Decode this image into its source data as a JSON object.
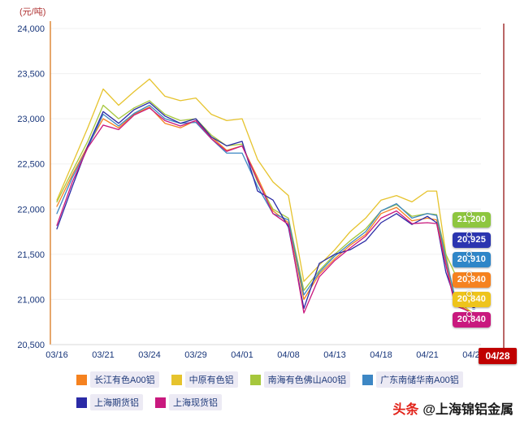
{
  "header": {
    "unit_label": "(元/吨)"
  },
  "current_date_badge": "04/28",
  "watermark": {
    "brand": "头条",
    "handle": "@上海锦铝金属"
  },
  "chart_data": {
    "type": "line",
    "title": "",
    "ylabel": "(元/吨)",
    "ylim": [
      20500,
      24000
    ],
    "y_tick_step": 500,
    "y_ticks": [
      "24,000",
      "23,500",
      "23,000",
      "22,500",
      "22,000",
      "21,500",
      "21,000",
      "20,500"
    ],
    "grid": true,
    "legend_position": "bottom",
    "dates": [
      "03/16",
      "03/17",
      "03/18",
      "03/21",
      "03/22",
      "03/23",
      "03/24",
      "03/25",
      "03/28",
      "03/29",
      "03/30",
      "03/31",
      "04/01",
      "04/06",
      "04/07",
      "04/08",
      "04/11",
      "04/12",
      "04/13",
      "04/14",
      "04/15",
      "04/18",
      "04/19",
      "04/20",
      "04/21",
      "04/22",
      "04/25",
      "04/26",
      "04/27",
      "04/28"
    ],
    "x_ticks": [
      {
        "index": 0,
        "label": "03/16"
      },
      {
        "index": 3,
        "label": "03/21"
      },
      {
        "index": 6,
        "label": "03/24"
      },
      {
        "index": 9,
        "label": "03/29"
      },
      {
        "index": 12,
        "label": "04/01"
      },
      {
        "index": 15,
        "label": "04/08"
      },
      {
        "index": 18,
        "label": "04/13"
      },
      {
        "index": 21,
        "label": "04/18"
      },
      {
        "index": 24,
        "label": "04/21"
      },
      {
        "index": 29,
        "label": "04/28"
      }
    ],
    "series": [
      {
        "name": "长江有色A00铝",
        "color": "#f5821f",
        "values": [
          22030,
          22380,
          22700,
          23000,
          22900,
          23050,
          23130,
          22950,
          22900,
          22980,
          22800,
          22650,
          22700,
          22350,
          21980,
          21850,
          21000,
          21280,
          21450,
          21600,
          21720,
          21950,
          22020,
          21870,
          21900,
          21880,
          21420,
          20950,
          20900,
          20840
        ]
      },
      {
        "name": "中原有色铝",
        "color": "#e6c32d",
        "values": [
          22100,
          22500,
          22900,
          23330,
          23150,
          23300,
          23440,
          23250,
          23200,
          23230,
          23050,
          22980,
          23000,
          22550,
          22300,
          22150,
          21200,
          21380,
          21550,
          21750,
          21900,
          22100,
          22150,
          22080,
          22200,
          22200,
          21500,
          20980,
          20920,
          20840
        ]
      },
      {
        "name": "南海有色佛山A00铝",
        "color": "#a6c73c",
        "values": [
          22080,
          22420,
          22750,
          23150,
          23000,
          23120,
          23200,
          23050,
          22980,
          23000,
          22820,
          22700,
          22720,
          22300,
          22000,
          21900,
          21100,
          21320,
          21500,
          21650,
          21780,
          21980,
          22050,
          21920,
          21950,
          21940,
          21500,
          21280,
          21230,
          21200
        ]
      },
      {
        "name": "广东南储华南A00铝",
        "color": "#3d87c4",
        "values": [
          21950,
          22350,
          22680,
          23050,
          22920,
          23060,
          23150,
          23000,
          22950,
          22960,
          22780,
          22620,
          22620,
          22250,
          21950,
          21880,
          21050,
          21300,
          21480,
          21620,
          21750,
          21980,
          22060,
          21900,
          21950,
          21930,
          21450,
          21020,
          20960,
          20910
        ]
      },
      {
        "name": "上海期货铝",
        "color": "#2b2ba6",
        "values": [
          21780,
          22250,
          22700,
          23080,
          22950,
          23100,
          23180,
          23030,
          22950,
          23000,
          22800,
          22700,
          22750,
          22200,
          22100,
          21800,
          20900,
          21400,
          21500,
          21550,
          21650,
          21850,
          21950,
          21830,
          21920,
          21850,
          21300,
          21000,
          20950,
          20925
        ]
      },
      {
        "name": "上海现货铝",
        "color": "#c9197e",
        "values": [
          21820,
          22300,
          22680,
          22930,
          22880,
          23040,
          23120,
          22980,
          22920,
          22980,
          22780,
          22640,
          22700,
          22320,
          21950,
          21830,
          20850,
          21250,
          21430,
          21570,
          21700,
          21900,
          21980,
          21840,
          21850,
          21840,
          21380,
          20930,
          20890,
          20840
        ]
      }
    ],
    "end_labels": [
      {
        "value": "21,200",
        "color": "#8ec63f"
      },
      {
        "value": "20,925",
        "color": "#2b35b0"
      },
      {
        "value": "20,910",
        "color": "#2f86c8"
      },
      {
        "value": "20,840",
        "color": "#f5821f"
      },
      {
        "value": "20,840",
        "color": "#eec41c"
      },
      {
        "value": "20,840",
        "color": "#c9197e"
      }
    ]
  }
}
